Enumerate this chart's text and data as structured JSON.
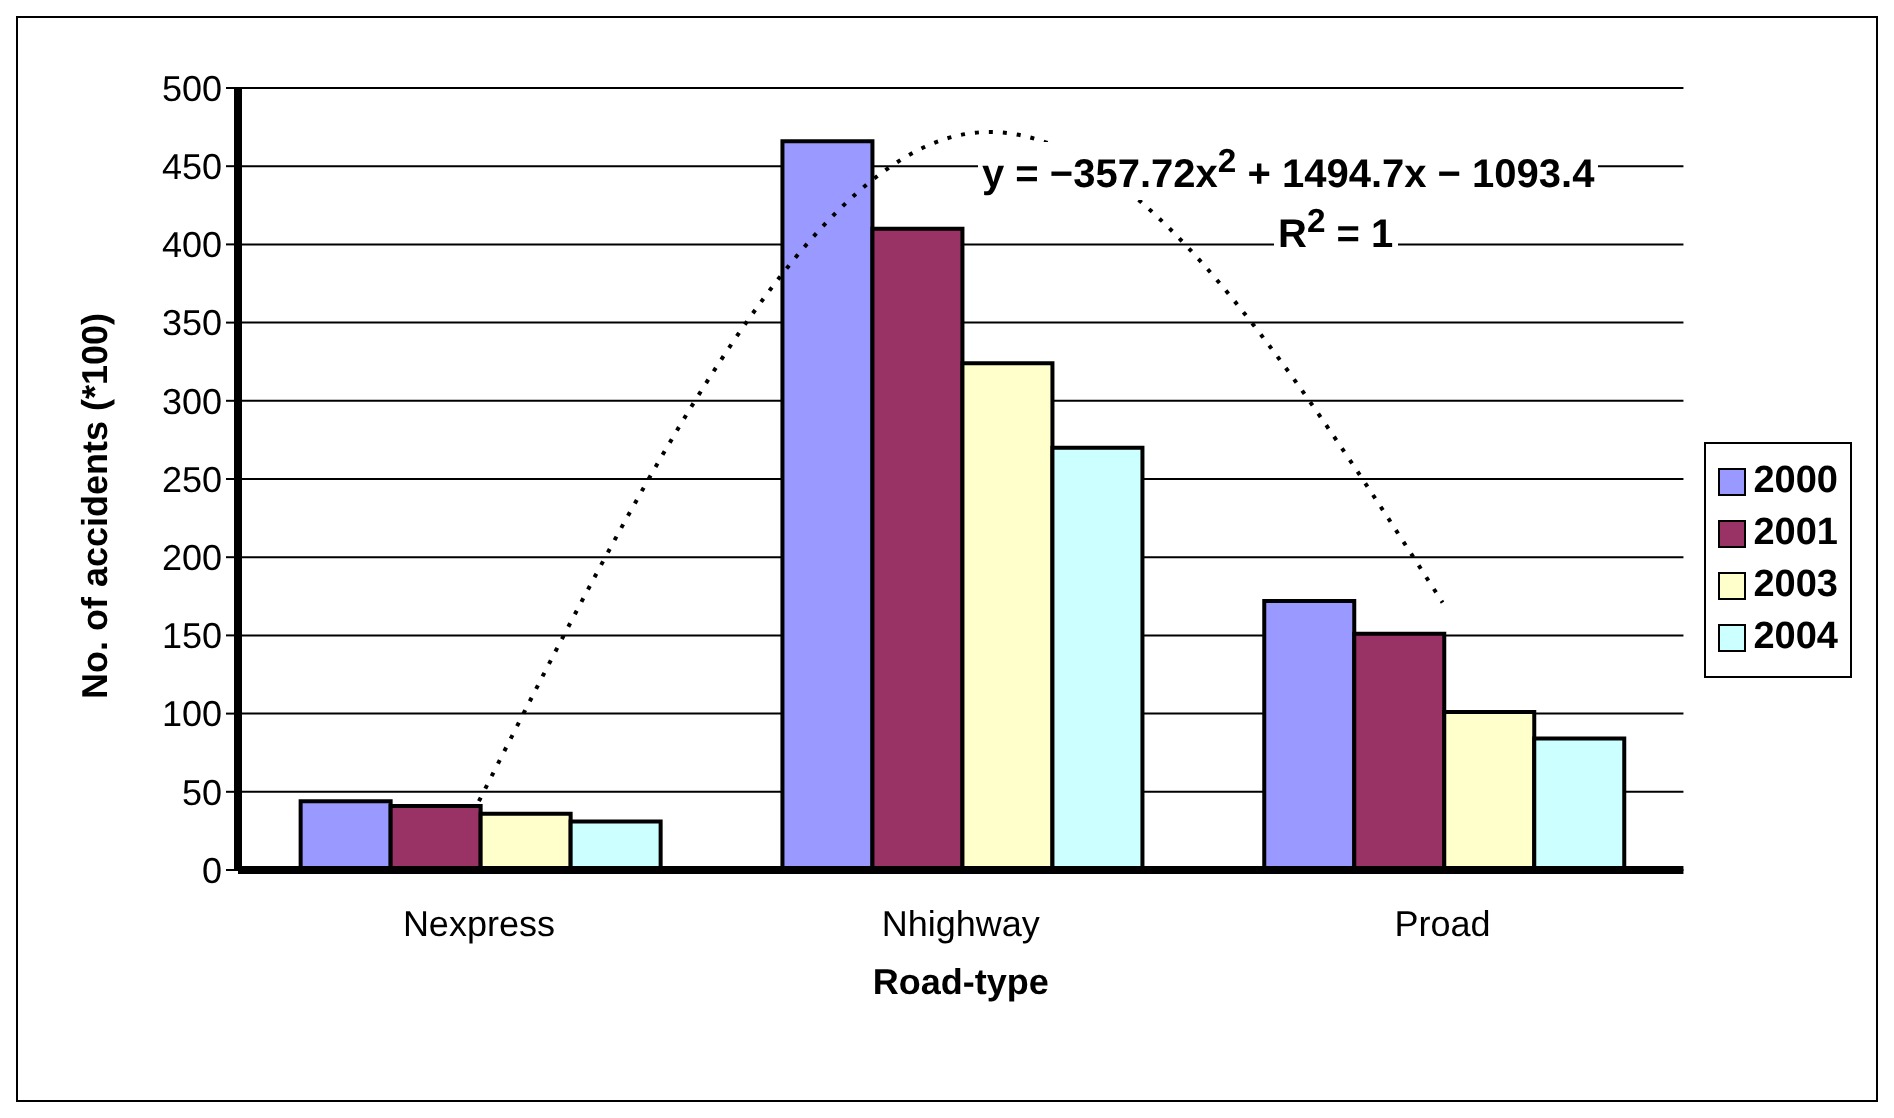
{
  "chart_data": {
    "type": "bar",
    "xlabel": "Road-type",
    "ylabel": "No. of accidents (*100)",
    "categories": [
      "Nexpress",
      "Nhighway",
      "Proad"
    ],
    "series": [
      {
        "name": "2000",
        "color": "#9999ff",
        "values": [
          44,
          466,
          172
        ]
      },
      {
        "name": "2001",
        "color": "#993366",
        "values": [
          41,
          410,
          151
        ]
      },
      {
        "name": "2003",
        "color": "#ffffcc",
        "values": [
          36,
          324,
          101
        ]
      },
      {
        "name": "2004",
        "color": "#ccffff",
        "values": [
          31,
          270,
          84
        ]
      },
      {
        "type": "line",
        "color": "#000000",
        "line_style": "dotted",
        "values": [
          44,
          470,
          171
        ]
      }
    ],
    "ylim": [
      0,
      500
    ],
    "yticks": [
      0,
      50,
      100,
      150,
      200,
      250,
      300,
      350,
      400,
      450,
      500
    ],
    "grid": "y",
    "legend": "right",
    "annotations": [
      "y = −357.72x$^{2}$ + 1494.7x − 1093.4",
      "R$^{2}$ = 1"
    ]
  }
}
